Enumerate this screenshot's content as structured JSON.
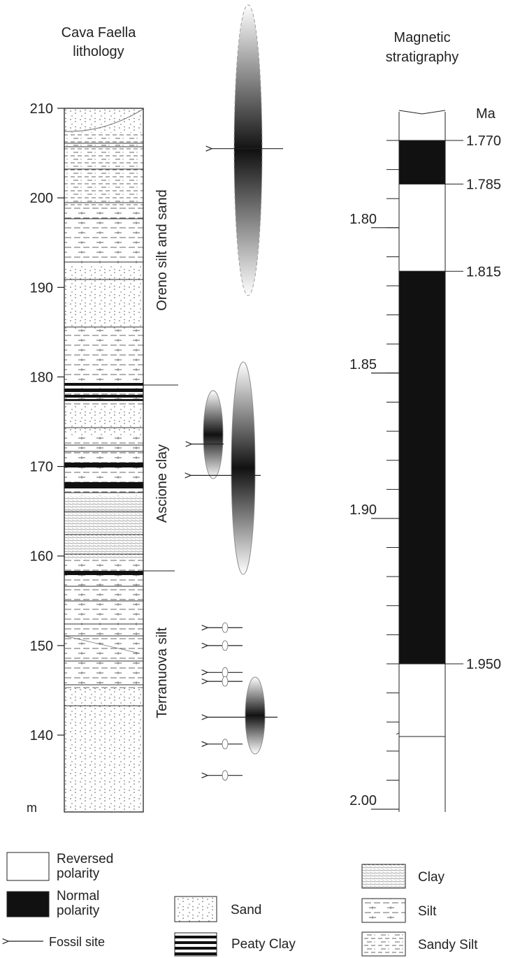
{
  "lithology_title": [
    "Cava Faella",
    "lithology"
  ],
  "magstrat_title": [
    "Magnetic",
    "stratigraphy"
  ],
  "depth_unit": "m",
  "depth_ticks": [
    {
      "v": 210,
      "label": "210"
    },
    {
      "v": 200,
      "label": "200"
    },
    {
      "v": 190,
      "label": "190"
    },
    {
      "v": 180,
      "label": "180"
    },
    {
      "v": 170,
      "label": "170"
    },
    {
      "v": 160,
      "label": "160"
    },
    {
      "v": 150,
      "label": "150"
    },
    {
      "v": 140,
      "label": "140"
    }
  ],
  "formations": [
    {
      "name": "Oreno silt and sand"
    },
    {
      "name": "Ascione clay"
    },
    {
      "name": "Terranuova silt"
    }
  ],
  "age_unit": "Ma",
  "age_ticks_major": [
    {
      "v": 1.8,
      "label": "1.80"
    },
    {
      "v": 1.85,
      "label": "1.85"
    },
    {
      "v": 1.9,
      "label": "1.90"
    },
    {
      "v": 2.0,
      "label": "2.00"
    }
  ],
  "polarity_boundaries": [
    {
      "v": 1.77,
      "label": "1.770"
    },
    {
      "v": 1.785,
      "label": "1.785"
    },
    {
      "v": 1.815,
      "label": "1.815"
    },
    {
      "v": 1.95,
      "label": "1.950"
    }
  ],
  "polarity_intervals": [
    {
      "from": 1.77,
      "to": 1.785,
      "polarity": "normal"
    },
    {
      "from": 1.785,
      "to": 1.815,
      "polarity": "reversed"
    },
    {
      "from": 1.815,
      "to": 1.95,
      "polarity": "normal"
    },
    {
      "from": 1.95,
      "to": 1.975,
      "polarity": "reversed"
    }
  ],
  "fossil_sites_m": [
    205.5,
    172.5,
    169,
    152,
    150,
    147,
    146,
    142,
    139,
    135.5
  ],
  "legend": {
    "reversed": "Reversed polarity",
    "reversed_lines": [
      "Reversed",
      "polarity"
    ],
    "normal": "Normal polarity",
    "normal_lines": [
      "Normal",
      "polarity"
    ],
    "fossil": "Fossil site",
    "sand": "Sand",
    "peaty_clay": "Peaty Clay",
    "clay": "Clay",
    "silt": "Silt",
    "sandy_silt": "Sandy Silt"
  }
}
